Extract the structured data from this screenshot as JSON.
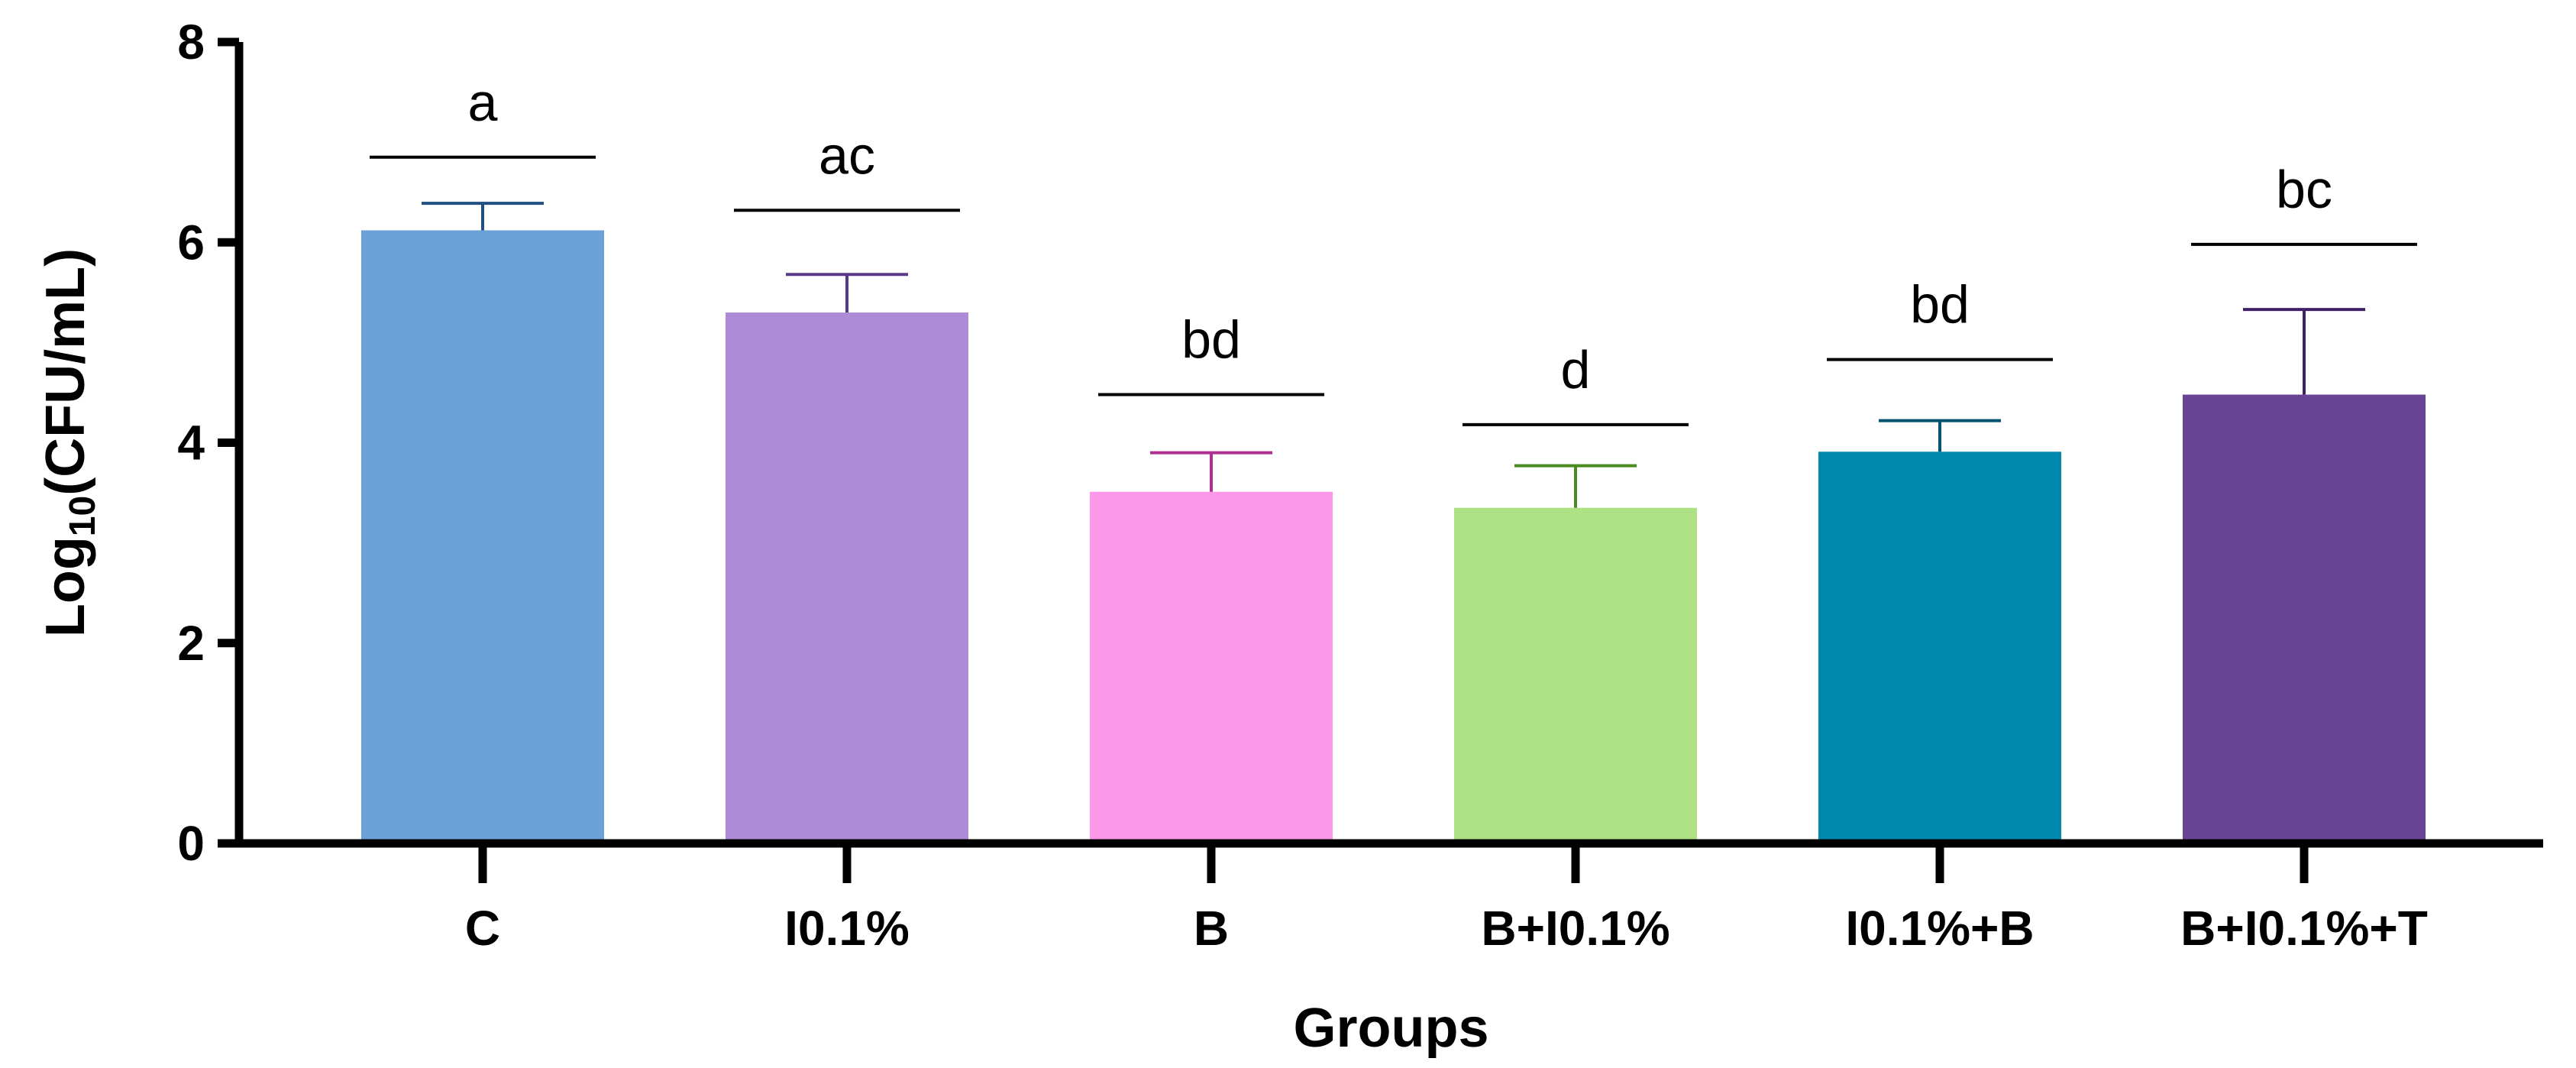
{
  "chart_data": {
    "type": "bar",
    "title": "",
    "xlabel": "Groups",
    "ylabel_main": "Log",
    "ylabel_sub": "10",
    "ylabel_rest": "(CFU/mL)",
    "ylim": [
      0,
      8
    ],
    "yticks": [
      "0",
      "2",
      "4",
      "6",
      "8"
    ],
    "ytick_values": [
      0,
      2,
      4,
      6,
      8
    ],
    "categories": [
      "C",
      "I0.1%",
      "B",
      "B+I0.1%",
      "I0.1%+B",
      "B+I0.1%+T"
    ],
    "values": [
      6.12,
      5.3,
      3.51,
      3.35,
      3.91,
      4.48
    ],
    "errors": [
      0.27,
      0.38,
      0.39,
      0.42,
      0.31,
      0.85
    ],
    "significance_letters": [
      "a",
      "ac",
      "bd",
      "d",
      "bd",
      "bc"
    ],
    "significance_line_levels": [
      6.85,
      6.32,
      4.48,
      4.18,
      4.83,
      5.98
    ],
    "bar_colors": [
      "#6aa1d6",
      "#ae8bd6",
      "#fd97ea",
      "#aee084",
      "#0089ae",
      "#6a4494"
    ],
    "error_colors": [
      "#1f5080",
      "#5a3a88",
      "#b0308f",
      "#4a8a1f",
      "#005470",
      "#40206a"
    ],
    "grid": false
  }
}
